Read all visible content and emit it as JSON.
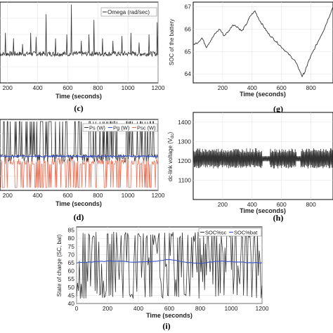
{
  "chart_data": [
    {
      "id": "c",
      "type": "line",
      "caption": "(c)",
      "xlabel": "Time (seconds)",
      "xticks": [
        200,
        400,
        600,
        800,
        1000,
        1200
      ],
      "xlim": [
        150,
        1200
      ],
      "ylim": [
        0,
        1
      ],
      "grid": true,
      "legend": {
        "entries": [
          "Omega (rad/sec)"
        ],
        "placement": "top-right"
      },
      "series": [
        {
          "name": "Omega (rad/sec)",
          "color": "#333333",
          "baseline": 0.36,
          "noise": 0.03,
          "spikes": [
            [
              185,
              0.62
            ],
            [
              240,
              0.55
            ],
            [
              300,
              0.48
            ],
            [
              355,
              0.62
            ],
            [
              390,
              0.57
            ],
            [
              455,
              0.85
            ],
            [
              520,
              0.55
            ],
            [
              595,
              0.6
            ],
            [
              625,
              0.97
            ],
            [
              690,
              0.52
            ],
            [
              740,
              0.6
            ],
            [
              775,
              0.78
            ],
            [
              830,
              0.55
            ],
            [
              900,
              0.52
            ],
            [
              960,
              0.58
            ],
            [
              1020,
              0.62
            ],
            [
              1075,
              0.5
            ],
            [
              1140,
              0.6
            ],
            [
              1195,
              0.75
            ]
          ]
        }
      ]
    },
    {
      "id": "g",
      "type": "line",
      "caption": "(g)",
      "xlabel": "Time (seconds)",
      "ylabel": "SOC of the battery",
      "xticks": [
        200,
        400,
        600,
        800
      ],
      "yticks": [
        64,
        65,
        66,
        67
      ],
      "xlim": [
        0,
        950
      ],
      "ylim": [
        63.6,
        67.2
      ],
      "grid": true,
      "series": [
        {
          "name": "SOC of the battery",
          "color": "#333333",
          "x": [
            0,
            30,
            60,
            90,
            120,
            150,
            180,
            210,
            240,
            270,
            300,
            330,
            360,
            390,
            420,
            450,
            480,
            510,
            540,
            570,
            600,
            630,
            660,
            690,
            720,
            740,
            760,
            780,
            800,
            830,
            860,
            890,
            920,
            950
          ],
          "y": [
            65.3,
            65.4,
            65.6,
            65.2,
            65.5,
            65.8,
            66.0,
            65.7,
            65.9,
            66.2,
            66.1,
            65.9,
            66.2,
            66.6,
            66.8,
            66.4,
            66.1,
            65.8,
            65.6,
            65.4,
            65.2,
            65.0,
            64.8,
            64.6,
            64.2,
            63.9,
            64.1,
            64.5,
            64.8,
            65.2,
            65.6,
            66.0,
            66.5,
            67.0
          ]
        }
      ]
    },
    {
      "id": "d",
      "type": "line",
      "caption": "(d)",
      "xlabel": "Time (seconds)",
      "xticks": [
        200,
        400,
        600,
        800,
        1000,
        1200
      ],
      "xlim": [
        150,
        1200
      ],
      "ylim": [
        0,
        1
      ],
      "grid": true,
      "legend": {
        "entries": [
          "Ps (W)",
          "Pg (W)",
          "Psc (W)"
        ],
        "placement": "top-right"
      },
      "series": [
        {
          "name": "Ps (W)",
          "color": "#333333"
        },
        {
          "name": "Pg (W)",
          "color": "#3a55c8"
        },
        {
          "name": "Psc (W)",
          "color": "#e8735a"
        }
      ]
    },
    {
      "id": "h",
      "type": "line",
      "caption": "(h)",
      "xlabel": "Time (seconds)",
      "ylabel": "dc-link voltage (V",
      "ylabel_sub": "dc",
      "ylabel_end": ")",
      "xticks": [
        200,
        400,
        600,
        800
      ],
      "yticks": [
        1100,
        1200,
        1300,
        1400
      ],
      "xlim": [
        0,
        950
      ],
      "ylim": [
        1000,
        1450
      ],
      "grid": true,
      "series": [
        {
          "name": "dc-link voltage",
          "color": "#333333",
          "center": 1210,
          "amp": 55
        }
      ]
    },
    {
      "id": "i",
      "type": "line",
      "caption": "(i)",
      "xlabel": "Time (seconds)",
      "ylabel": "State of charge (SC, bat)",
      "xticks": [
        0,
        200,
        400,
        600,
        800,
        1000,
        1200
      ],
      "yticks": [
        40,
        45,
        50,
        55,
        60,
        65,
        70,
        75,
        80,
        85
      ],
      "xlim": [
        0,
        1200
      ],
      "ylim": [
        40,
        87
      ],
      "grid": true,
      "legend": {
        "entries": [
          "SOC%sc",
          "SOC%bat"
        ],
        "placement": "top-right"
      },
      "series": [
        {
          "name": "SOC%sc",
          "color": "#333333",
          "low": 46,
          "high": 84
        },
        {
          "name": "SOC%bat",
          "color": "#3a55c8",
          "x": [
            0,
            100,
            200,
            300,
            400,
            500,
            600,
            700,
            800,
            900,
            1000,
            1100,
            1200
          ],
          "y": [
            65,
            65.5,
            66,
            65.8,
            65.3,
            65.7,
            67,
            65.5,
            64.5,
            66,
            65.8,
            65.2,
            65
          ]
        }
      ]
    }
  ]
}
